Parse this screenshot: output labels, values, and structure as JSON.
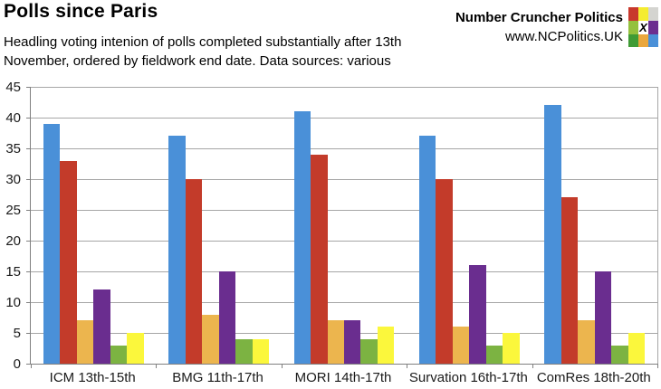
{
  "header": {
    "title": "Polls since Paris",
    "subtitle_lines": [
      "Headling voting intenion of polls completed substantially after 13th",
      "November, ordered by fieldwork end date. Data sources: various"
    ],
    "brand": {
      "name": "Number Cruncher Politics",
      "url": "www.NCPolitics.UK",
      "logo_x": "X",
      "logo_colors": [
        [
          "#c8382c",
          "#f5ec30",
          "#d4d4d0"
        ],
        [
          "#94c13d",
          "#ffffff",
          "#6c2e8f"
        ],
        [
          "#3f9b35",
          "#eaa73d",
          "#4a90d8"
        ]
      ]
    }
  },
  "chart_data": {
    "type": "bar",
    "title": "Polls since Paris",
    "categories": [
      "ICM 13th-15th",
      "BMG 11th-17th",
      "MORI 14th-17th",
      "Survation 16th-17th",
      "ComRes 18th-20th"
    ],
    "series": [
      {
        "name": "blue",
        "color": "#4a90d8",
        "values": [
          39,
          37,
          41,
          37,
          42
        ]
      },
      {
        "name": "red",
        "color": "#c33b2a",
        "values": [
          33,
          30,
          34,
          30,
          27
        ]
      },
      {
        "name": "orange",
        "color": "#ecb54e",
        "values": [
          7,
          8,
          7,
          6,
          7
        ]
      },
      {
        "name": "purple",
        "color": "#6a2d8f",
        "values": [
          12,
          15,
          7,
          16,
          15
        ]
      },
      {
        "name": "green",
        "color": "#7cb342",
        "values": [
          3,
          4,
          4,
          3,
          3
        ]
      },
      {
        "name": "yellow",
        "color": "#fbf73c",
        "values": [
          5,
          4,
          6,
          5,
          5
        ]
      }
    ],
    "ylim": [
      0,
      45
    ],
    "ytick_step": 5,
    "grid": true,
    "legend": "none",
    "axis_color": "#808080",
    "grid_color": "#a6a6a6"
  }
}
